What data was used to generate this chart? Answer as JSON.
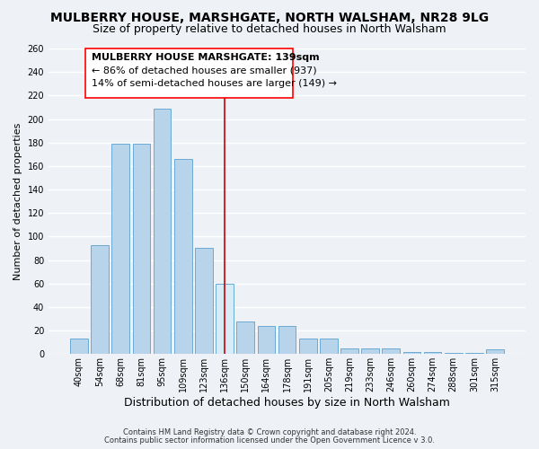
{
  "title": "MULBERRY HOUSE, MARSHGATE, NORTH WALSHAM, NR28 9LG",
  "subtitle": "Size of property relative to detached houses in North Walsham",
  "xlabel": "Distribution of detached houses by size in North Walsham",
  "ylabel": "Number of detached properties",
  "footer1": "Contains HM Land Registry data © Crown copyright and database right 2024.",
  "footer2": "Contains public sector information licensed under the Open Government Licence v 3.0.",
  "bar_labels": [
    "40sqm",
    "54sqm",
    "68sqm",
    "81sqm",
    "95sqm",
    "109sqm",
    "123sqm",
    "136sqm",
    "150sqm",
    "164sqm",
    "178sqm",
    "191sqm",
    "205sqm",
    "219sqm",
    "233sqm",
    "246sqm",
    "260sqm",
    "274sqm",
    "288sqm",
    "301sqm",
    "315sqm"
  ],
  "bar_heights": [
    13,
    93,
    179,
    179,
    209,
    166,
    90,
    60,
    28,
    24,
    24,
    13,
    13,
    5,
    5,
    5,
    2,
    2,
    1,
    1,
    4
  ],
  "bar_color": "#b8d4ea",
  "bar_edge_color": "#6aaad4",
  "highlight_index": 7,
  "highlight_color": "#d8ecf8",
  "highlight_line_color": "#cc0000",
  "ylim_max": 260,
  "ytick_step": 20,
  "annotation_title": "MULBERRY HOUSE MARSHGATE: 139sqm",
  "annotation_line1": "← 86% of detached houses are smaller (937)",
  "annotation_line2": "14% of semi-detached houses are larger (149) →",
  "background_color": "#eef2f7",
  "grid_color": "#ffffff",
  "title_fontsize": 10,
  "subtitle_fontsize": 9,
  "xlabel_fontsize": 9,
  "ylabel_fontsize": 8,
  "tick_fontsize": 7,
  "annot_title_fontsize": 8,
  "annot_body_fontsize": 8,
  "footer_fontsize": 6
}
